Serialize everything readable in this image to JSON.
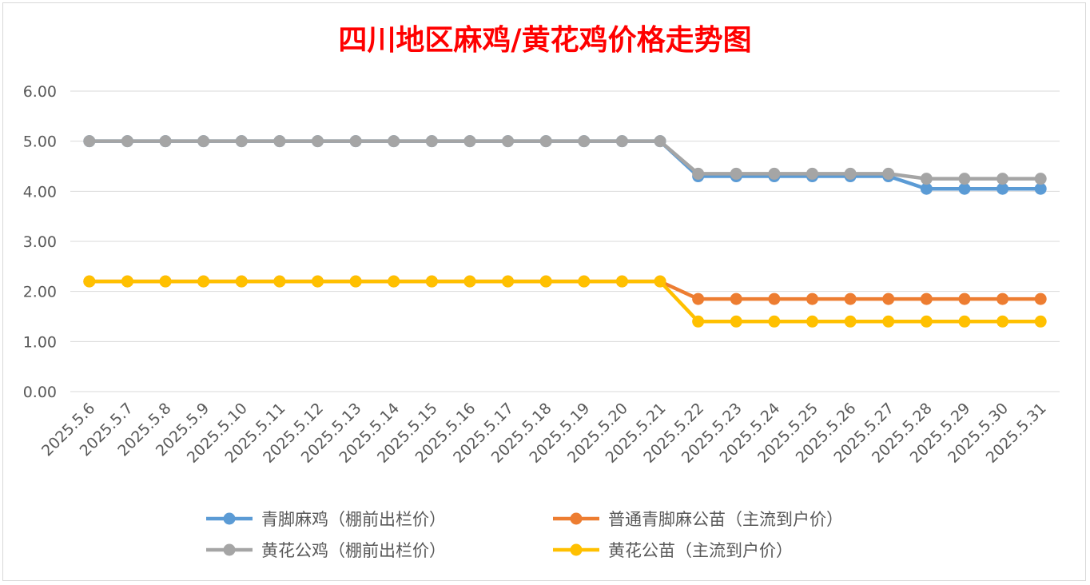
{
  "chart_data": {
    "type": "line",
    "title": "四川地区麻鸡/黄花鸡价格走势图",
    "xlabel": "",
    "ylabel": "",
    "ylim": [
      0,
      6
    ],
    "yticks": [
      "0.00",
      "1.00",
      "2.00",
      "3.00",
      "4.00",
      "5.00",
      "6.00"
    ],
    "grid": "horizontal",
    "legend_position": "bottom",
    "categories": [
      "2025.5.6",
      "2025.5.7",
      "2025.5.8",
      "2025.5.9",
      "2025.5.10",
      "2025.5.11",
      "2025.5.12",
      "2025.5.13",
      "2025.5.14",
      "2025.5.15",
      "2025.5.16",
      "2025.5.17",
      "2025.5.18",
      "2025.5.19",
      "2025.5.20",
      "2025.5.21",
      "2025.5.22",
      "2025.5.23",
      "2025.5.24",
      "2025.5.25",
      "2025.5.26",
      "2025.5.27",
      "2025.5.28",
      "2025.5.29",
      "2025.5.30",
      "2025.5.31"
    ],
    "series": [
      {
        "name": "普通青脚麻公苗（主流到户价）",
        "color": "#ed7d31",
        "values": [
          2.2,
          2.2,
          2.2,
          2.2,
          2.2,
          2.2,
          2.2,
          2.2,
          2.2,
          2.2,
          2.2,
          2.2,
          2.2,
          2.2,
          2.2,
          2.2,
          1.85,
          1.85,
          1.85,
          1.85,
          1.85,
          1.85,
          1.85,
          1.85,
          1.85,
          1.85
        ]
      },
      {
        "name": "黄花公苗（主流到户价）",
        "color": "#ffc000",
        "values": [
          2.2,
          2.2,
          2.2,
          2.2,
          2.2,
          2.2,
          2.2,
          2.2,
          2.2,
          2.2,
          2.2,
          2.2,
          2.2,
          2.2,
          2.2,
          2.2,
          1.4,
          1.4,
          1.4,
          1.4,
          1.4,
          1.4,
          1.4,
          1.4,
          1.4,
          1.4
        ]
      },
      {
        "name": "青脚麻鸡（棚前出栏价）",
        "color": "#5b9bd5",
        "values": [
          5,
          5,
          5,
          5,
          5,
          5,
          5,
          5,
          5,
          5,
          5,
          5,
          5,
          5,
          5,
          5,
          4.3,
          4.3,
          4.3,
          4.3,
          4.3,
          4.3,
          4.05,
          4.05,
          4.05,
          4.05
        ]
      },
      {
        "name": "黄花公鸡（棚前出栏价）",
        "color": "#a5a5a5",
        "values": [
          5,
          5,
          5,
          5,
          5,
          5,
          5,
          5,
          5,
          5,
          5,
          5,
          5,
          5,
          5,
          5,
          4.35,
          4.35,
          4.35,
          4.35,
          4.35,
          4.35,
          4.25,
          4.25,
          4.25,
          4.25
        ]
      }
    ],
    "legend": [
      {
        "series": 2
      },
      {
        "series": 0
      },
      {
        "series": 3
      },
      {
        "series": 1
      }
    ]
  }
}
